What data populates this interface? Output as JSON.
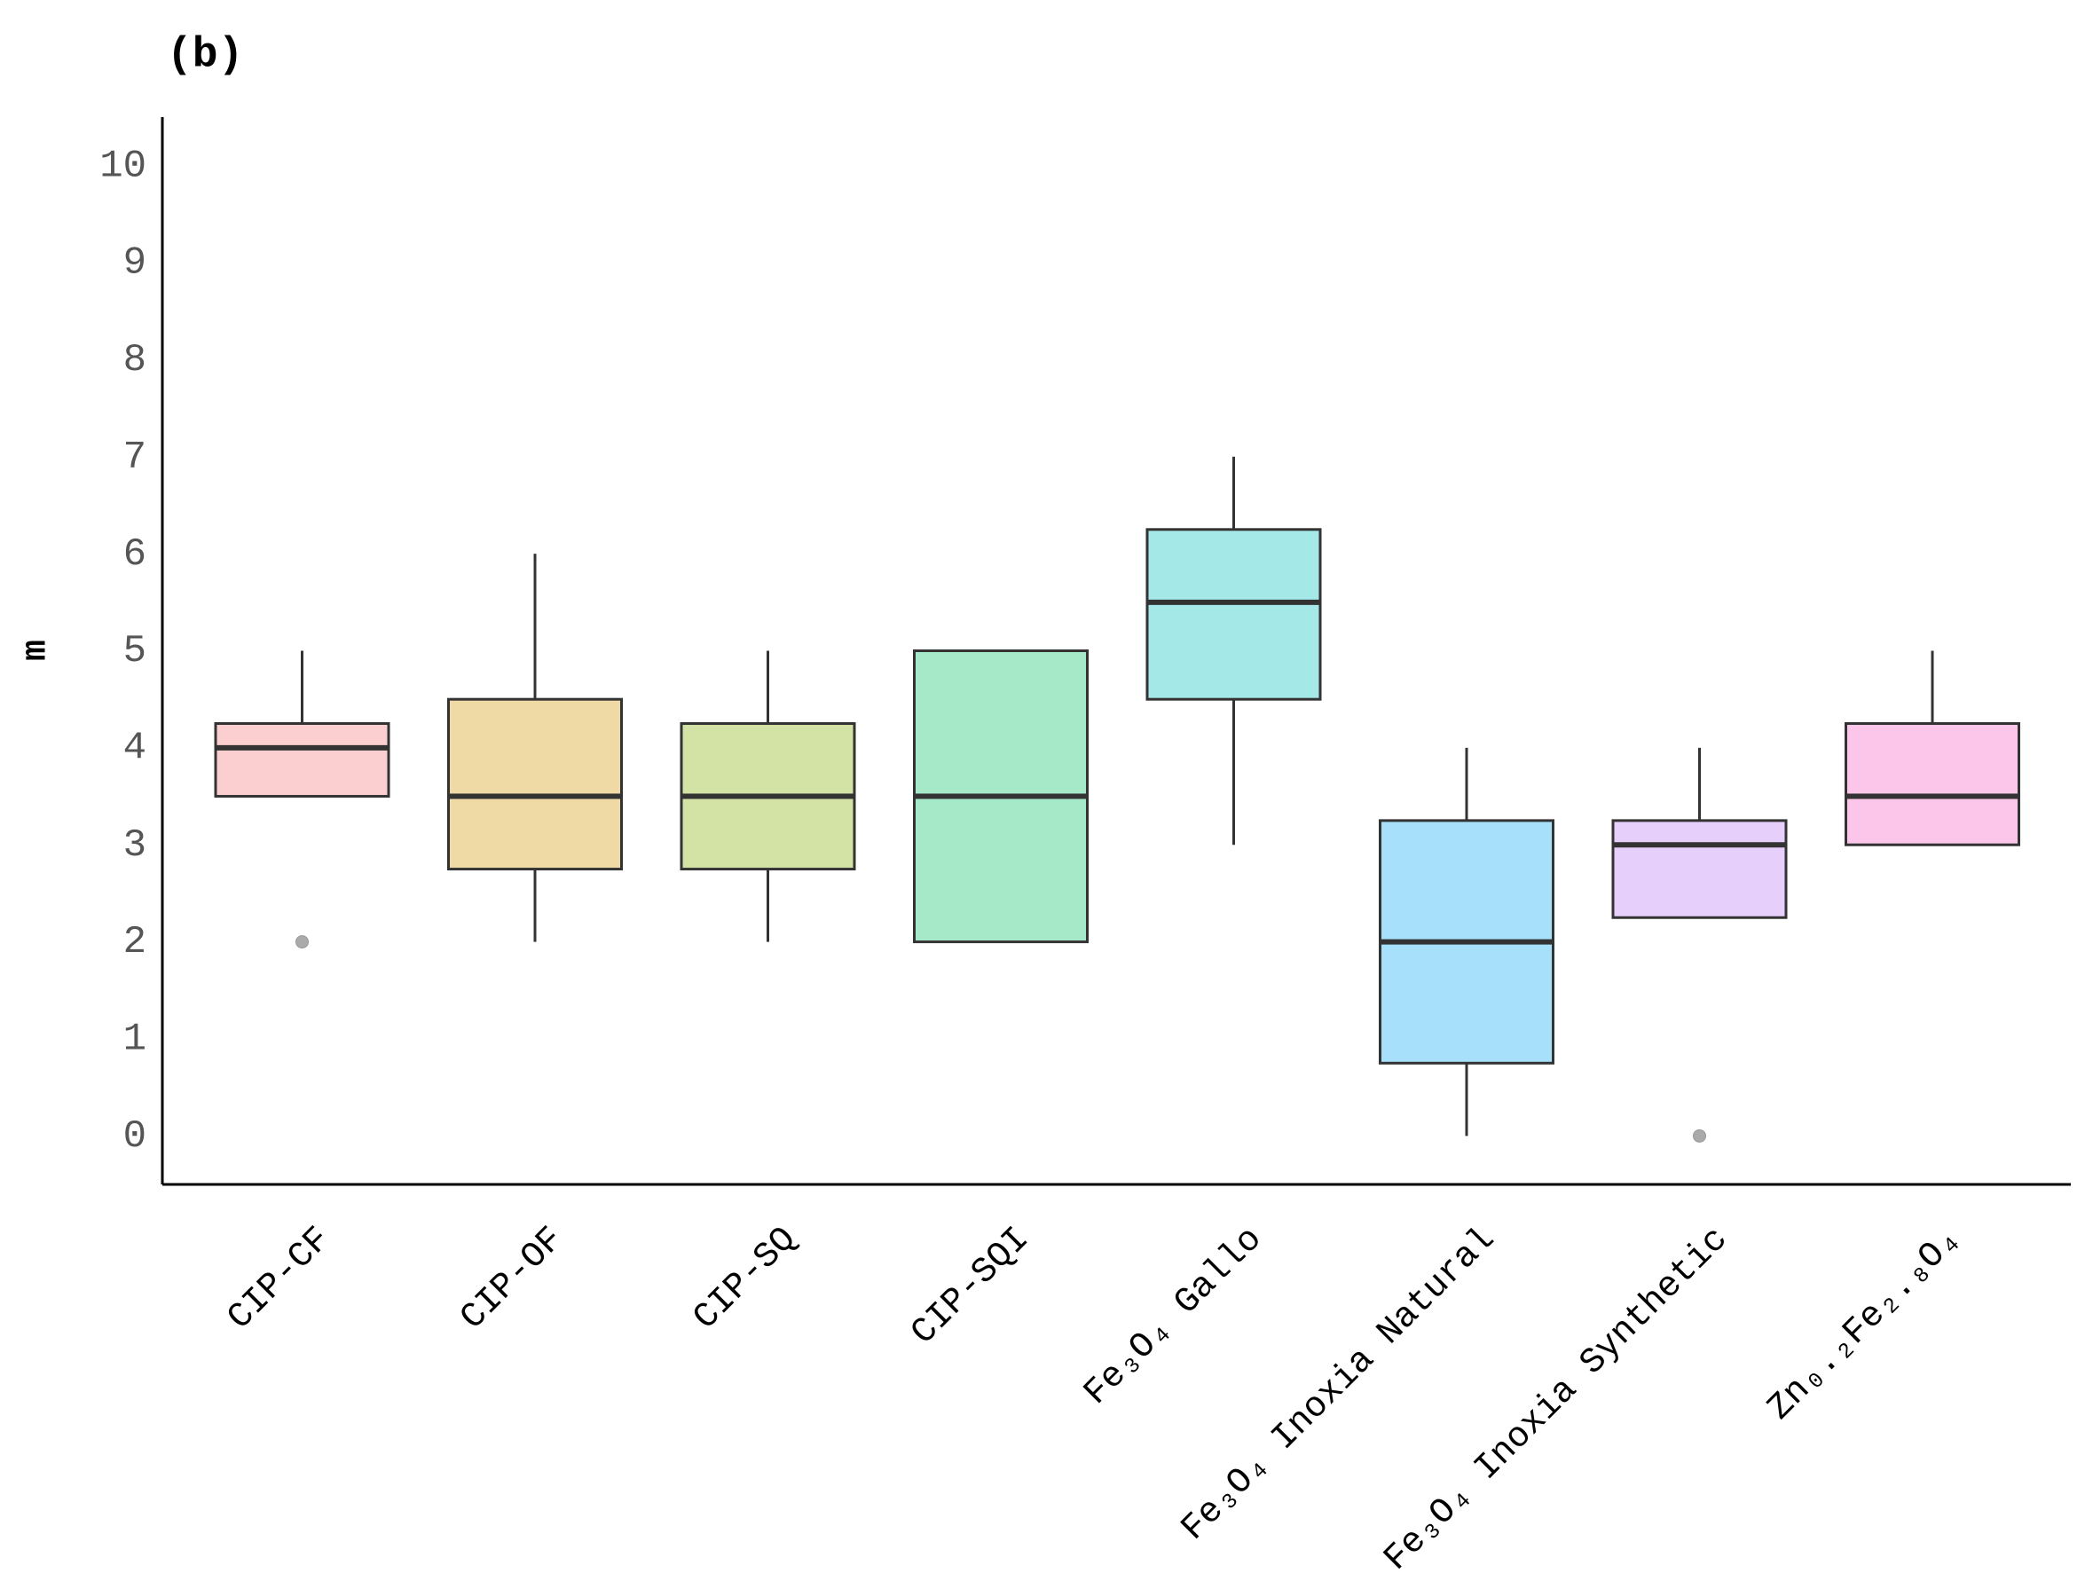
{
  "chart_data": {
    "type": "box",
    "title": "(b)",
    "y_label": "m",
    "categories": [
      "CIP-CF",
      "CIP-OF",
      "CIP-SQ",
      "CIP-SQI",
      "Fe₃O₄ Gallo",
      "Fe₃O₄ Inoxia Natural",
      "Fe₃O₄ Inoxia Synthetic",
      "Zn₀.₂Fe₂.₈O₄"
    ],
    "colors": [
      "#fbcfcf",
      "#efd9a5",
      "#d3e3a5",
      "#a6e9c9",
      "#a4e9e8",
      "#a6e0fb",
      "#e6d0fb",
      "#fbc6ea"
    ],
    "boxes": [
      {
        "whisker_low": 3.5,
        "q1": 3.5,
        "median": 4,
        "q3": 4.25,
        "whisker_high": 5,
        "outliers": [
          2
        ]
      },
      {
        "whisker_low": 2,
        "q1": 2.75,
        "median": 3.5,
        "q3": 4.5,
        "whisker_high": 6,
        "outliers": []
      },
      {
        "whisker_low": 2,
        "q1": 2.75,
        "median": 3.5,
        "q3": 4.25,
        "whisker_high": 5,
        "outliers": []
      },
      {
        "whisker_low": 2,
        "q1": 2,
        "median": 3.5,
        "q3": 5,
        "whisker_high": 5,
        "outliers": []
      },
      {
        "whisker_low": 3,
        "q1": 4.5,
        "median": 5.5,
        "q3": 6.25,
        "whisker_high": 7,
        "outliers": []
      },
      {
        "whisker_low": 0,
        "q1": 0.75,
        "median": 2,
        "q3": 3.25,
        "whisker_high": 4,
        "outliers": []
      },
      {
        "whisker_low": 2.25,
        "q1": 2.25,
        "median": 3,
        "q3": 3.25,
        "whisker_high": 4,
        "outliers": [
          0
        ]
      },
      {
        "whisker_low": 3,
        "q1": 3,
        "median": 3.5,
        "q3": 4.25,
        "whisker_high": 5,
        "outliers": []
      }
    ],
    "ylim": [
      -0.5,
      10.5
    ],
    "yticks": [
      0,
      1,
      2,
      3,
      4,
      5,
      6,
      7,
      8,
      9,
      10
    ],
    "grid": false
  }
}
